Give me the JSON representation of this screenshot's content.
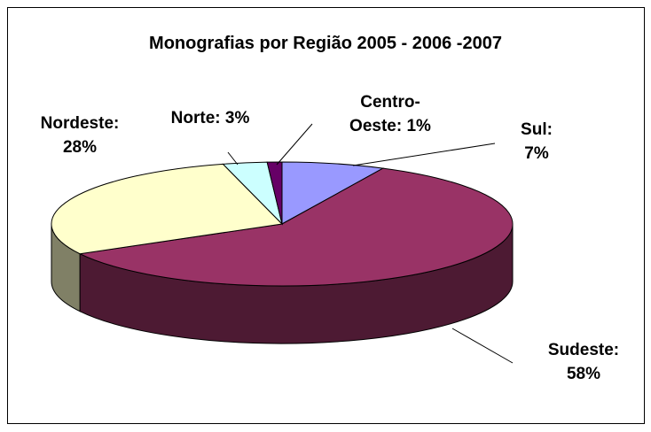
{
  "chart_data": {
    "type": "pie3d",
    "title": "Monografias por Região 2005 - 2006 -2007",
    "categories": [
      "Sul:",
      "Sudeste:",
      "Nordeste:",
      "Norte:",
      "Centro-Oeste:"
    ],
    "values": [
      7,
      58,
      28,
      3,
      1
    ],
    "value_labels": [
      "7%",
      "58%",
      "28%",
      "3%",
      "1%"
    ],
    "colors": [
      "#9999ff",
      "#993366",
      "#ffffcc",
      "#ccffff",
      "#660066"
    ]
  }
}
